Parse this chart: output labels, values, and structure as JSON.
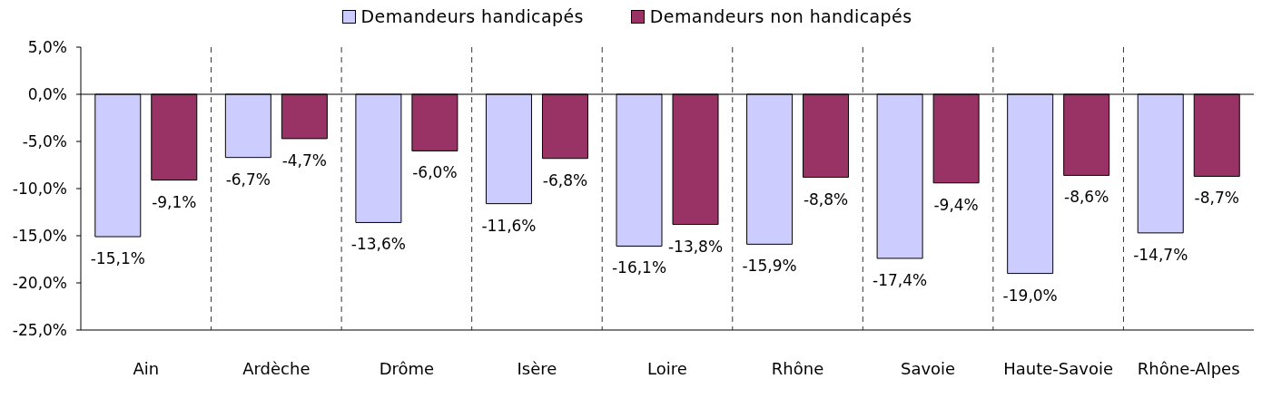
{
  "chart_data": {
    "type": "bar",
    "categories": [
      "Ain",
      "Ardèche",
      "Drôme",
      "Isère",
      "Loire",
      "Rhône",
      "Savoie",
      "Haute-Savoie",
      "Rhône-Alpes"
    ],
    "series": [
      {
        "name": "Demandeurs handicapés",
        "color": "#ccccff",
        "values": [
          -15.1,
          -6.7,
          -13.6,
          -11.6,
          -16.1,
          -15.9,
          -17.4,
          -19.0,
          -14.7
        ],
        "value_labels": [
          "-15,1%",
          "-6,7%",
          "-13,6%",
          "-11,6%",
          "-16,1%",
          "-15,9%",
          "-17,4%",
          "-19,0%",
          "-14,7%"
        ]
      },
      {
        "name": "Demandeurs non handicapés",
        "color": "#993366",
        "values": [
          -9.1,
          -4.7,
          -6.0,
          -6.8,
          -13.8,
          -8.8,
          -9.4,
          -8.6,
          -8.7
        ],
        "value_labels": [
          "-9,1%",
          "-4,7%",
          "-6,0%",
          "-6,8%",
          "-13,8%",
          "-8,8%",
          "-9,4%",
          "-8,6%",
          "-8,7%"
        ]
      }
    ],
    "ylim": [
      -25,
      5
    ],
    "yticks": [
      {
        "value": 5,
        "label": "5,0%"
      },
      {
        "value": 0,
        "label": "0,0%"
      },
      {
        "value": -5,
        "label": "-5,0%"
      },
      {
        "value": -10,
        "label": "-10,0%"
      },
      {
        "value": -15,
        "label": "-15,0%"
      },
      {
        "value": -20,
        "label": "-20,0%"
      },
      {
        "value": -25,
        "label": "-25,0%"
      }
    ],
    "ref_lines": [
      {
        "axis": "y",
        "value": 0,
        "color": "#000000"
      }
    ],
    "grid": "x",
    "legend": "top"
  }
}
